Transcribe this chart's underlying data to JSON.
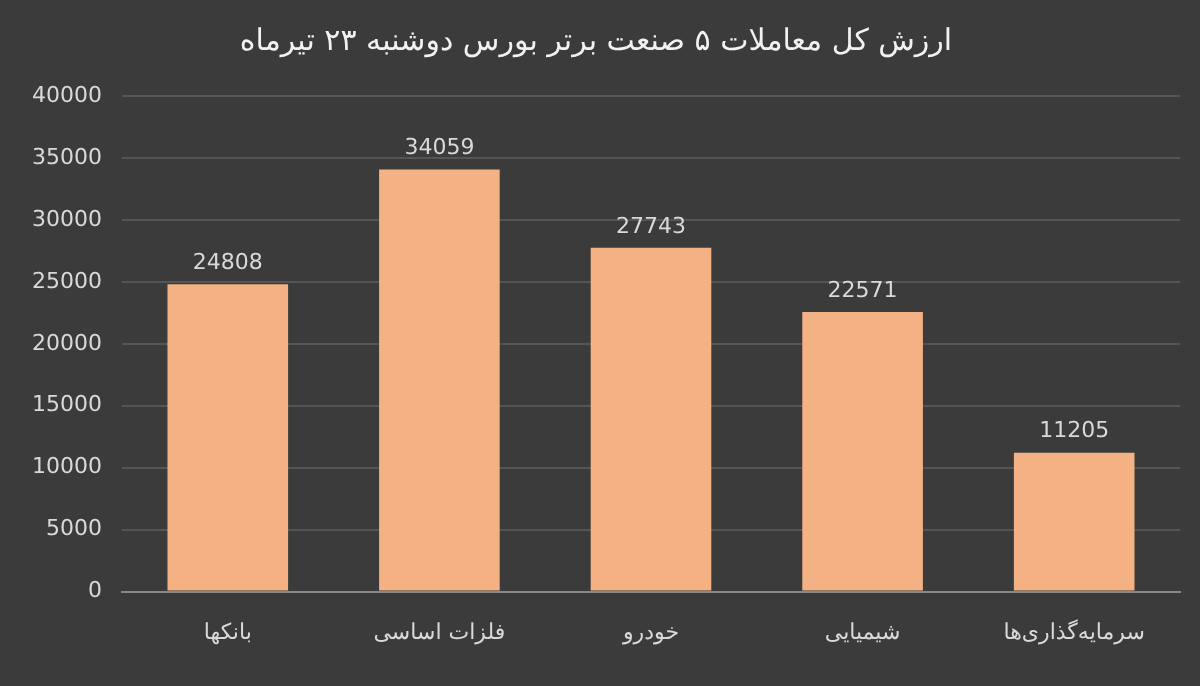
{
  "chart_data": {
    "type": "bar",
    "title": "ارزش کل معاملات ۵ صنعت برتر بورس دوشنبه ۲۳ تیرماه",
    "categories": [
      "بانکها",
      "فلزات اساسی",
      "خودرو",
      "شیمیایی",
      "سرمایه‌گذاری‌ها"
    ],
    "values": [
      24808,
      34059,
      27743,
      22571,
      11205
    ],
    "color": "#f4b183",
    "ylim": [
      0,
      40000
    ],
    "yticks": [
      0,
      5000,
      10000,
      15000,
      20000,
      25000,
      30000,
      35000,
      40000
    ],
    "grid": "y",
    "data_labels": true,
    "legend": false
  }
}
